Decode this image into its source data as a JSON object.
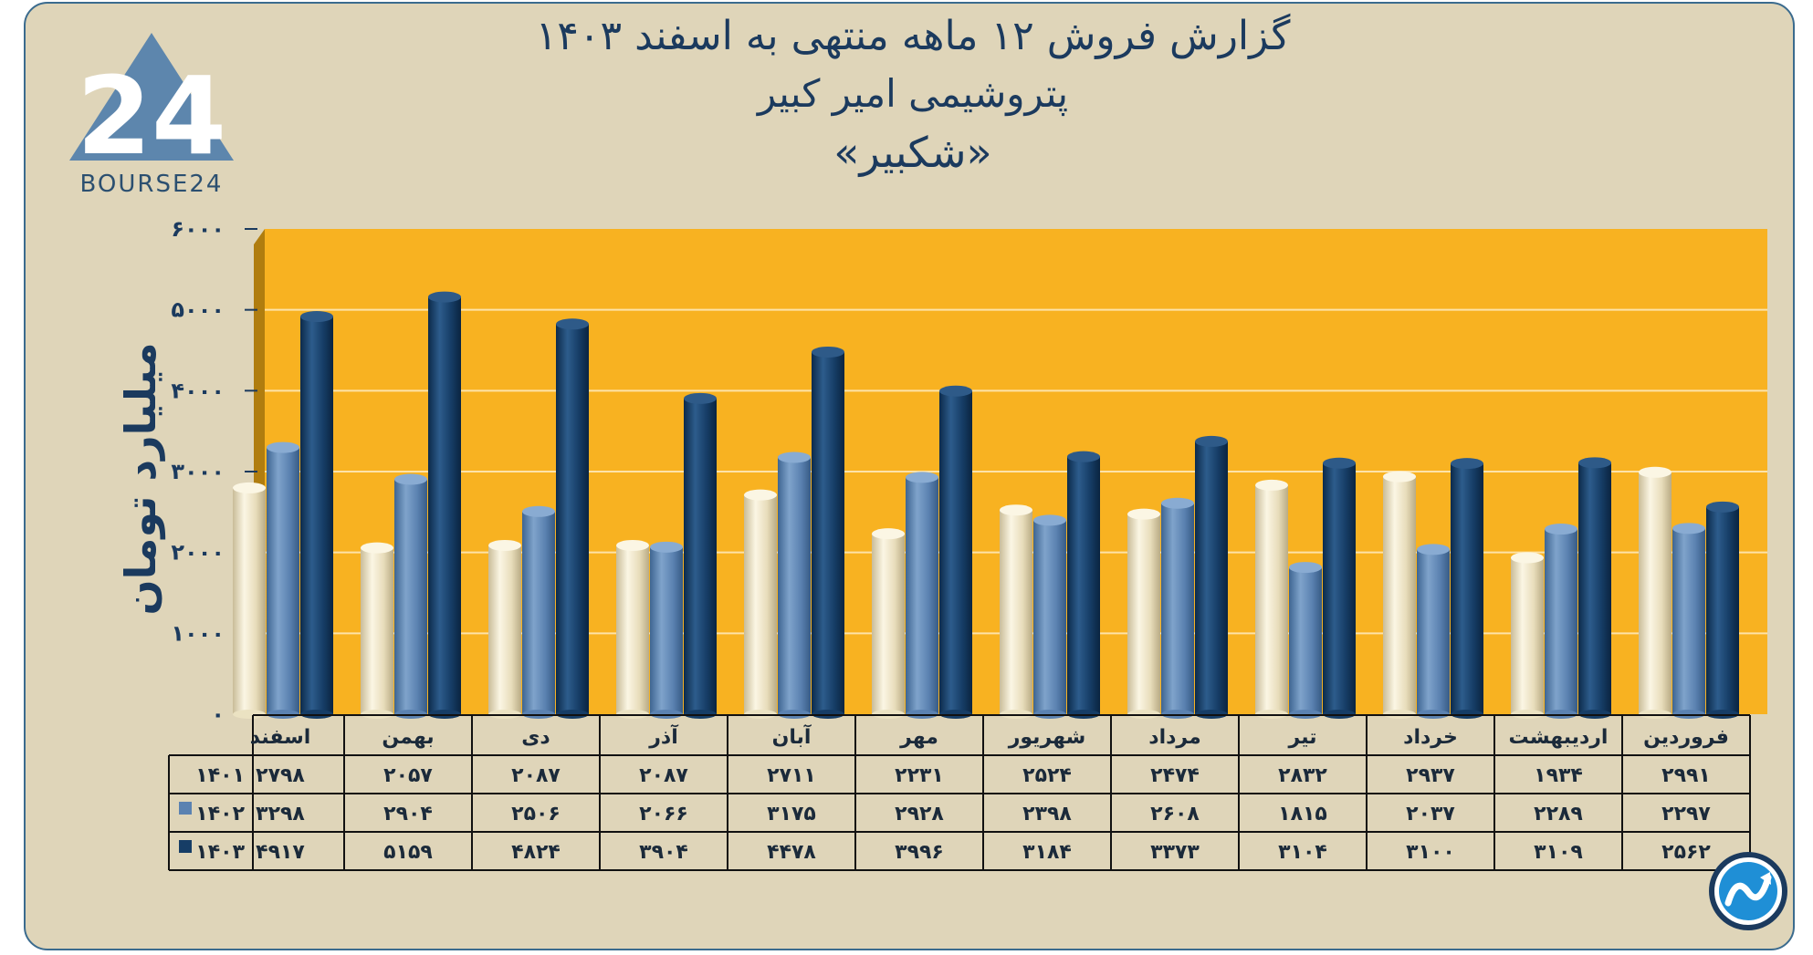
{
  "brand": {
    "logo_text": "BOURSE24",
    "logo_mark": "24"
  },
  "titles": {
    "line1": "گزارش  فروش ۱۲ ماهه منتهی به اسفند ۱۴۰۳",
    "line2": "پتروشیمی امیر کبیر",
    "line3": "«شکبیر»"
  },
  "chart_data": {
    "type": "bar",
    "ylabel": "میلیارد تومان",
    "ylim": [
      0,
      6000
    ],
    "y_ticks": [
      "۰",
      "۱۰۰۰",
      "۲۰۰۰",
      "۳۰۰۰",
      "۴۰۰۰",
      "۵۰۰۰",
      "۶۰۰۰"
    ],
    "categories": [
      "فروردین",
      "اردیبهشت",
      "خرداد",
      "تیر",
      "مرداد",
      "شهریور",
      "مهر",
      "آبان",
      "آذر",
      "دی",
      "بهمن",
      "اسفند"
    ],
    "series": [
      {
        "name": "۱۴۰۱",
        "color": "#ebe2c2",
        "values": [
          2991,
          1934,
          2937,
          2832,
          2474,
          2524,
          2231,
          2711,
          2087,
          2087,
          2057,
          2798
        ],
        "labels": [
          "۲۹۹۱",
          "۱۹۳۴",
          "۲۹۳۷",
          "۲۸۳۲",
          "۲۴۷۴",
          "۲۵۲۴",
          "۲۲۳۱",
          "۲۷۱۱",
          "۲۰۸۷",
          "۲۰۸۷",
          "۲۰۵۷",
          "۲۷۹۸"
        ]
      },
      {
        "name": "۱۴۰۲",
        "color": "#5b82b1",
        "values": [
          2297,
          2289,
          2037,
          1815,
          2608,
          2398,
          2928,
          3175,
          2066,
          2506,
          2904,
          3298
        ],
        "labels": [
          "۲۲۹۷",
          "۲۲۸۹",
          "۲۰۳۷",
          "۱۸۱۵",
          "۲۶۰۸",
          "۲۳۹۸",
          "۲۹۲۸",
          "۳۱۷۵",
          "۲۰۶۶",
          "۲۵۰۶",
          "۲۹۰۴",
          "۳۲۹۸"
        ]
      },
      {
        "name": "۱۴۰۳",
        "color": "#163d66",
        "values": [
          2562,
          3109,
          3100,
          3104,
          3373,
          3184,
          3996,
          4478,
          3904,
          4824,
          5159,
          4917
        ],
        "labels": [
          "۲۵۶۲",
          "۳۱۰۹",
          "۳۱۰۰",
          "۳۱۰۴",
          "۳۳۷۳",
          "۳۱۸۴",
          "۳۹۹۶",
          "۴۴۷۸",
          "۳۹۰۴",
          "۴۸۲۴",
          "۵۱۵۹",
          "۴۹۱۷"
        ]
      }
    ],
    "grid": true,
    "legend": "table"
  }
}
